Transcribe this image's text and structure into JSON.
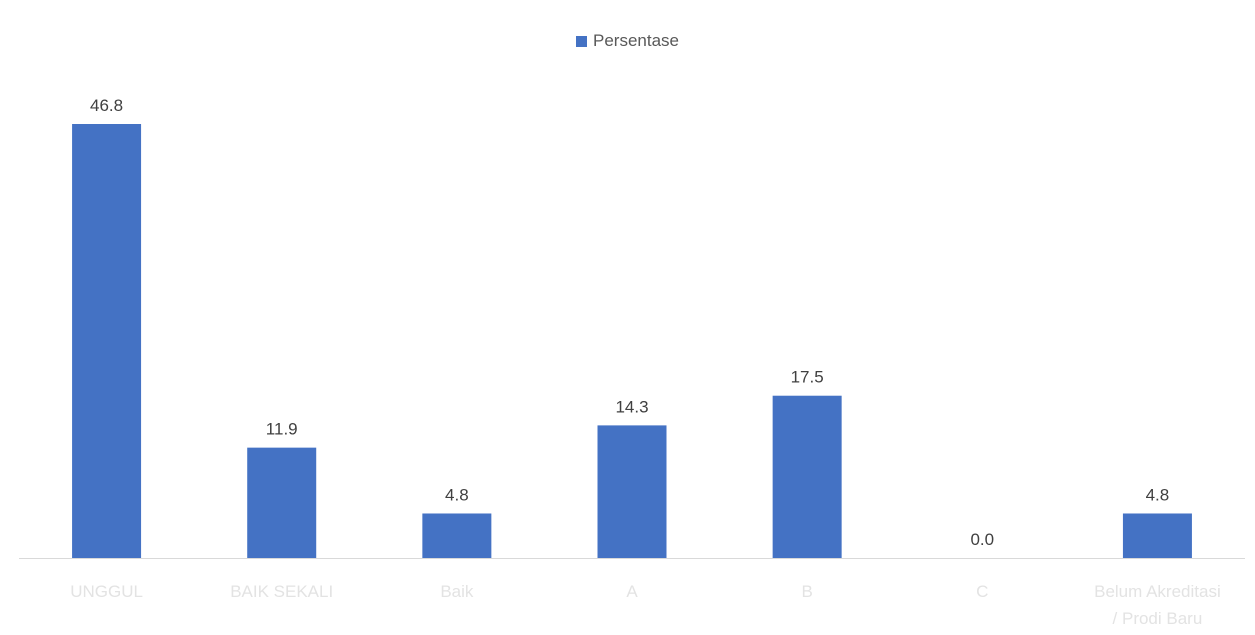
{
  "chart_data": {
    "type": "bar",
    "categories": [
      "UNGGUL",
      "BAIK SEKALI",
      "Baik",
      "A",
      "B",
      "C",
      "Belum Akreditasi / Prodi Baru"
    ],
    "category_lines": [
      [
        "UNGGUL"
      ],
      [
        "BAIK SEKALI"
      ],
      [
        "Baik"
      ],
      [
        "A"
      ],
      [
        "B"
      ],
      [
        "C"
      ],
      [
        "Belum Akreditasi",
        "/ Prodi Baru"
      ]
    ],
    "series": [
      {
        "name": "Persentase",
        "values": [
          46.8,
          11.9,
          4.8,
          14.3,
          17.5,
          0.0,
          4.8
        ],
        "labels": [
          "46.8",
          "11.9",
          "4.8",
          "14.3",
          "17.5",
          "0.0",
          "4.8"
        ],
        "color": "#4472c4"
      }
    ],
    "ylim": [
      0,
      46.8
    ],
    "grid": false,
    "legend_position": "top-center",
    "title": "",
    "xlabel": "",
    "ylabel": ""
  }
}
